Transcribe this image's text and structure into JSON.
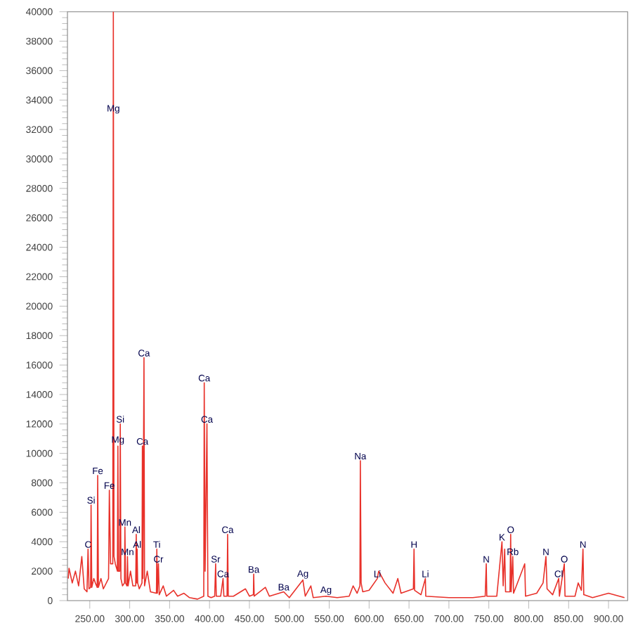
{
  "chart_data": {
    "type": "line",
    "color": "#e8312a",
    "x": [
      223,
      224,
      228,
      232,
      236,
      240,
      243,
      246.5,
      247.8,
      249,
      251,
      251.6,
      252.5,
      255,
      257,
      259.3,
      259.9,
      260.8,
      264,
      267,
      273.5,
      274.5,
      276,
      278.8,
      279.5,
      280.3,
      282,
      284.6,
      285.2,
      285.9,
      287.5,
      288.2,
      289,
      291,
      293.5,
      294,
      294.8,
      296.6,
      297.2,
      298,
      301,
      304,
      307.5,
      308.2,
      308.8,
      309.3,
      310,
      312,
      315.4,
      315.9,
      316.6,
      317.9,
      318.6,
      322,
      326,
      333.5,
      334,
      334.7,
      336,
      337,
      342,
      346,
      355,
      360,
      368,
      375,
      385,
      392.8,
      393.4,
      394.5,
      396.8,
      398,
      402,
      406.5,
      407.7,
      408.5,
      414,
      417,
      418,
      422,
      422.7,
      423.5,
      430,
      445,
      450,
      455,
      455.4,
      456,
      470,
      475,
      493,
      500,
      517,
      520,
      527,
      530,
      546,
      560,
      575,
      580,
      585,
      588.5,
      589,
      590,
      592,
      600,
      610.3,
      612,
      620,
      630,
      636,
      640,
      655.5,
      656.3,
      657,
      665,
      670.5,
      671,
      700,
      730,
      745.5,
      746.8,
      747.5,
      760,
      766.5,
      768,
      769.9,
      771,
      776.5,
      777.4,
      778,
      780,
      781,
      795,
      796,
      810,
      818,
      821.6,
      823,
      830,
      837.6,
      838.5,
      844.6,
      845.5,
      858,
      862,
      866,
      868,
      869,
      880,
      900,
      920
    ],
    "values": [
      1500,
      2200,
      1200,
      2000,
      1000,
      3000,
      800,
      600,
      3500,
      800,
      900,
      6500,
      900,
      1500,
      1200,
      900,
      8500,
      900,
      1500,
      800,
      1500,
      7500,
      2500,
      2500,
      40000,
      3000,
      2500,
      2000,
      10500,
      2000,
      2000,
      12000,
      1500,
      1000,
      1200,
      5000,
      1200,
      1000,
      3000,
      1000,
      2000,
      1000,
      1000,
      4500,
      1200,
      3500,
      1200,
      800,
      1200,
      10500,
      1500,
      16500,
      1000,
      2000,
      600,
      500,
      3500,
      500,
      2500,
      400,
      1000,
      300,
      700,
      300,
      500,
      200,
      100,
      300,
      14800,
      2000,
      12000,
      300,
      200,
      300,
      2500,
      300,
      300,
      1500,
      300,
      300,
      4500,
      300,
      300,
      800,
      300,
      400,
      1800,
      300,
      900,
      300,
      600,
      200,
      1400,
      300,
      1000,
      200,
      300,
      200,
      300,
      1000,
      500,
      1000,
      9500,
      1200,
      600,
      700,
      1500,
      2000,
      1200,
      500,
      1500,
      500,
      800,
      3500,
      700,
      400,
      1500,
      300,
      200,
      200,
      300,
      2500,
      300,
      300,
      4000,
      1000,
      3500,
      600,
      600,
      4500,
      600,
      3000,
      500,
      2500,
      300,
      500,
      1200,
      3000,
      800,
      400,
      1500,
      300,
      2500,
      300,
      300,
      1200,
      700,
      3500,
      400,
      200,
      500,
      200
    ],
    "xlim": [
      222,
      924
    ],
    "ylim": [
      0,
      40000
    ],
    "xticks": [
      {
        "value": 250,
        "label": "250.00"
      },
      {
        "value": 300,
        "label": "300.00"
      },
      {
        "value": 350,
        "label": "350.00"
      },
      {
        "value": 400,
        "label": "400.00"
      },
      {
        "value": 450,
        "label": "450.00"
      },
      {
        "value": 500,
        "label": "500.00"
      },
      {
        "value": 550,
        "label": "550.00"
      },
      {
        "value": 600,
        "label": "600.00"
      },
      {
        "value": 650,
        "label": "650.00"
      },
      {
        "value": 700,
        "label": "700.00"
      },
      {
        "value": 750,
        "label": "750.00"
      },
      {
        "value": 800,
        "label": "800.00"
      },
      {
        "value": 850,
        "label": "850.00"
      },
      {
        "value": 900,
        "label": "900.00"
      }
    ],
    "yticks": [
      0,
      2000,
      4000,
      6000,
      8000,
      10000,
      12000,
      14000,
      16000,
      18000,
      20000,
      22000,
      24000,
      26000,
      28000,
      30000,
      32000,
      34000,
      36000,
      38000,
      40000
    ],
    "grid": false,
    "marker": "none",
    "line_style": "solid",
    "annotations": [
      {
        "text": "Mg",
        "x": 279.5,
        "y": 33000
      },
      {
        "text": "C",
        "x": 247.8,
        "y": 3500
      },
      {
        "text": "Si",
        "x": 251.6,
        "y": 6500
      },
      {
        "text": "Fe",
        "x": 259.9,
        "y": 8500
      },
      {
        "text": "Fe",
        "x": 274.5,
        "y": 7500
      },
      {
        "text": "Mg",
        "x": 285.2,
        "y": 10500
      },
      {
        "text": "Si",
        "x": 288.2,
        "y": 12000
      },
      {
        "text": "Mn",
        "x": 294,
        "y": 5000
      },
      {
        "text": "Mn",
        "x": 297.2,
        "y": 3000
      },
      {
        "text": "Al",
        "x": 308.2,
        "y": 4500
      },
      {
        "text": "Al",
        "x": 309.3,
        "y": 3500
      },
      {
        "text": "Ca",
        "x": 315.9,
        "y": 10500
      },
      {
        "text": "Ca",
        "x": 317.9,
        "y": 16500
      },
      {
        "text": "Ti",
        "x": 334,
        "y": 3500
      },
      {
        "text": "Cr",
        "x": 336,
        "y": 2500
      },
      {
        "text": "Ca",
        "x": 393.4,
        "y": 14800
      },
      {
        "text": "Ca",
        "x": 396.8,
        "y": 12000
      },
      {
        "text": "Sr",
        "x": 407.7,
        "y": 2500
      },
      {
        "text": "Ca",
        "x": 417,
        "y": 1500
      },
      {
        "text": "Ca",
        "x": 422.7,
        "y": 4500
      },
      {
        "text": "Ba",
        "x": 455.4,
        "y": 1800
      },
      {
        "text": "Ba",
        "x": 493,
        "y": 600
      },
      {
        "text": "Ag",
        "x": 517,
        "y": 1400
      },
      {
        "text": "Ag",
        "x": 546,
        "y": 300
      },
      {
        "text": "Na",
        "x": 589,
        "y": 9500
      },
      {
        "text": "Li",
        "x": 610.3,
        "y": 1500
      },
      {
        "text": "H",
        "x": 656.3,
        "y": 3500
      },
      {
        "text": "Li",
        "x": 670.5,
        "y": 1500
      },
      {
        "text": "N",
        "x": 746.8,
        "y": 2500
      },
      {
        "text": "K",
        "x": 766.5,
        "y": 4000
      },
      {
        "text": "O",
        "x": 777.4,
        "y": 4500
      },
      {
        "text": "Rb",
        "x": 780,
        "y": 3000
      },
      {
        "text": "N",
        "x": 821.6,
        "y": 3000
      },
      {
        "text": "Cl",
        "x": 837.6,
        "y": 1500
      },
      {
        "text": "O",
        "x": 844.6,
        "y": 2500
      },
      {
        "text": "N",
        "x": 868,
        "y": 3500
      }
    ]
  }
}
